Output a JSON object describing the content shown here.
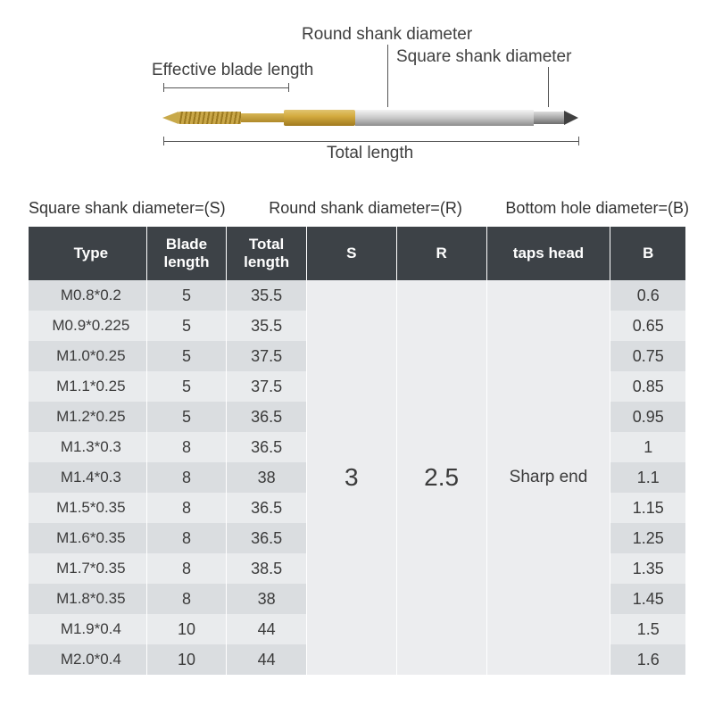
{
  "diagram": {
    "label_round": "Round shank diameter",
    "label_square": "Square shank diameter",
    "label_blade": "Effective blade length",
    "label_total": "Total length",
    "colors": {
      "gold_light": "#e1c470",
      "gold_dark": "#a07a1e",
      "silver_light": "#f4f4f4",
      "silver_dark": "#8d8d8d",
      "tip_dark": "#404040",
      "label_text": "#404040",
      "dim_line": "#555555"
    }
  },
  "legend": {
    "s": "Square shank diameter=(S)",
    "r": "Round shank diameter=(R)",
    "b": "Bottom hole diameter=(B)"
  },
  "table": {
    "header_bg": "#3d4247",
    "header_text": "#ffffff",
    "row_odd_bg": "#dadde0",
    "row_even_bg": "#e9ebed",
    "merged_bg": "#ecedef",
    "columns": [
      "Type",
      "Blade length",
      "Total length",
      "S",
      "R",
      "taps head",
      "B"
    ],
    "merged": {
      "s": "3",
      "r": "2.5",
      "taps_head": "Sharp end"
    },
    "rows": [
      {
        "type": "M0.8*0.2",
        "blade": "5",
        "total": "35.5",
        "b": "0.6"
      },
      {
        "type": "M0.9*0.225",
        "blade": "5",
        "total": "35.5",
        "b": "0.65"
      },
      {
        "type": "M1.0*0.25",
        "blade": "5",
        "total": "37.5",
        "b": "0.75"
      },
      {
        "type": "M1.1*0.25",
        "blade": "5",
        "total": "37.5",
        "b": "0.85"
      },
      {
        "type": "M1.2*0.25",
        "blade": "5",
        "total": "36.5",
        "b": "0.95"
      },
      {
        "type": "M1.3*0.3",
        "blade": "8",
        "total": "36.5",
        "b": "1"
      },
      {
        "type": "M1.4*0.3",
        "blade": "8",
        "total": "38",
        "b": "1.1"
      },
      {
        "type": "M1.5*0.35",
        "blade": "8",
        "total": "36.5",
        "b": "1.15"
      },
      {
        "type": "M1.6*0.35",
        "blade": "8",
        "total": "36.5",
        "b": "1.25"
      },
      {
        "type": "M1.7*0.35",
        "blade": "8",
        "total": "38.5",
        "b": "1.35"
      },
      {
        "type": "M1.8*0.35",
        "blade": "8",
        "total": "38",
        "b": "1.45"
      },
      {
        "type": "M1.9*0.4",
        "blade": "10",
        "total": "44",
        "b": "1.5"
      },
      {
        "type": "M2.0*0.4",
        "blade": "10",
        "total": "44",
        "b": "1.6"
      }
    ]
  }
}
